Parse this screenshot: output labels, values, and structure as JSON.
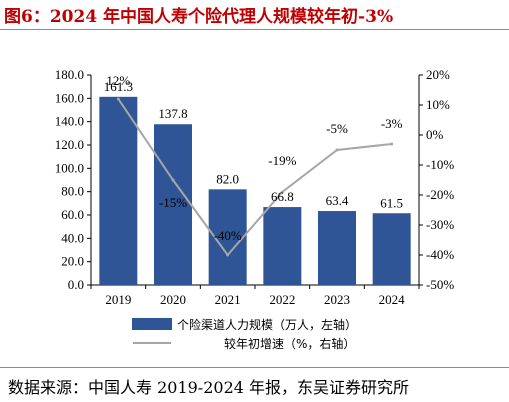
{
  "title": "图6：2024 年中国人寿个险代理人规模较年初-3%",
  "source": "数据来源：中国人寿 2019-2024 年报，东吴证券研究所",
  "colors": {
    "bar": "#2f5597",
    "line": "#a6a6a6",
    "title": "#c00000"
  },
  "chart_data": {
    "type": "bar",
    "categories": [
      "2019",
      "2020",
      "2021",
      "2022",
      "2023",
      "2024"
    ],
    "series": [
      {
        "name": "个险渠道人力规模（万人，左轴）",
        "type": "bar",
        "axis": "left",
        "values": [
          161.3,
          137.8,
          82.0,
          66.8,
          63.4,
          61.5
        ],
        "labels": [
          "161.3",
          "137.8",
          "82.0",
          "66.8",
          "63.4",
          "61.5"
        ]
      },
      {
        "name": "较年初增速（%，右轴）",
        "type": "line",
        "axis": "right",
        "values": [
          12,
          -15,
          -40,
          -19,
          -5,
          -3
        ],
        "labels": [
          "12%",
          "-15%",
          "-40%",
          "-19%",
          "-5%",
          "-3%"
        ]
      }
    ],
    "y_left": {
      "min": 0,
      "max": 180,
      "ticks": [
        0,
        20,
        40,
        60,
        80,
        100,
        120,
        140,
        160,
        180
      ],
      "tick_labels": [
        "0.0",
        "20.0",
        "40.0",
        "60.0",
        "80.0",
        "100.0",
        "120.0",
        "140.0",
        "160.0",
        "180.0"
      ]
    },
    "y_right": {
      "min": -50,
      "max": 20,
      "ticks": [
        -50,
        -40,
        -30,
        -20,
        -10,
        0,
        10,
        20
      ],
      "tick_labels": [
        "-50%",
        "-40%",
        "-30%",
        "-20%",
        "-10%",
        "0%",
        "10%",
        "20%"
      ]
    },
    "grid": false,
    "legend_position": "bottom"
  }
}
